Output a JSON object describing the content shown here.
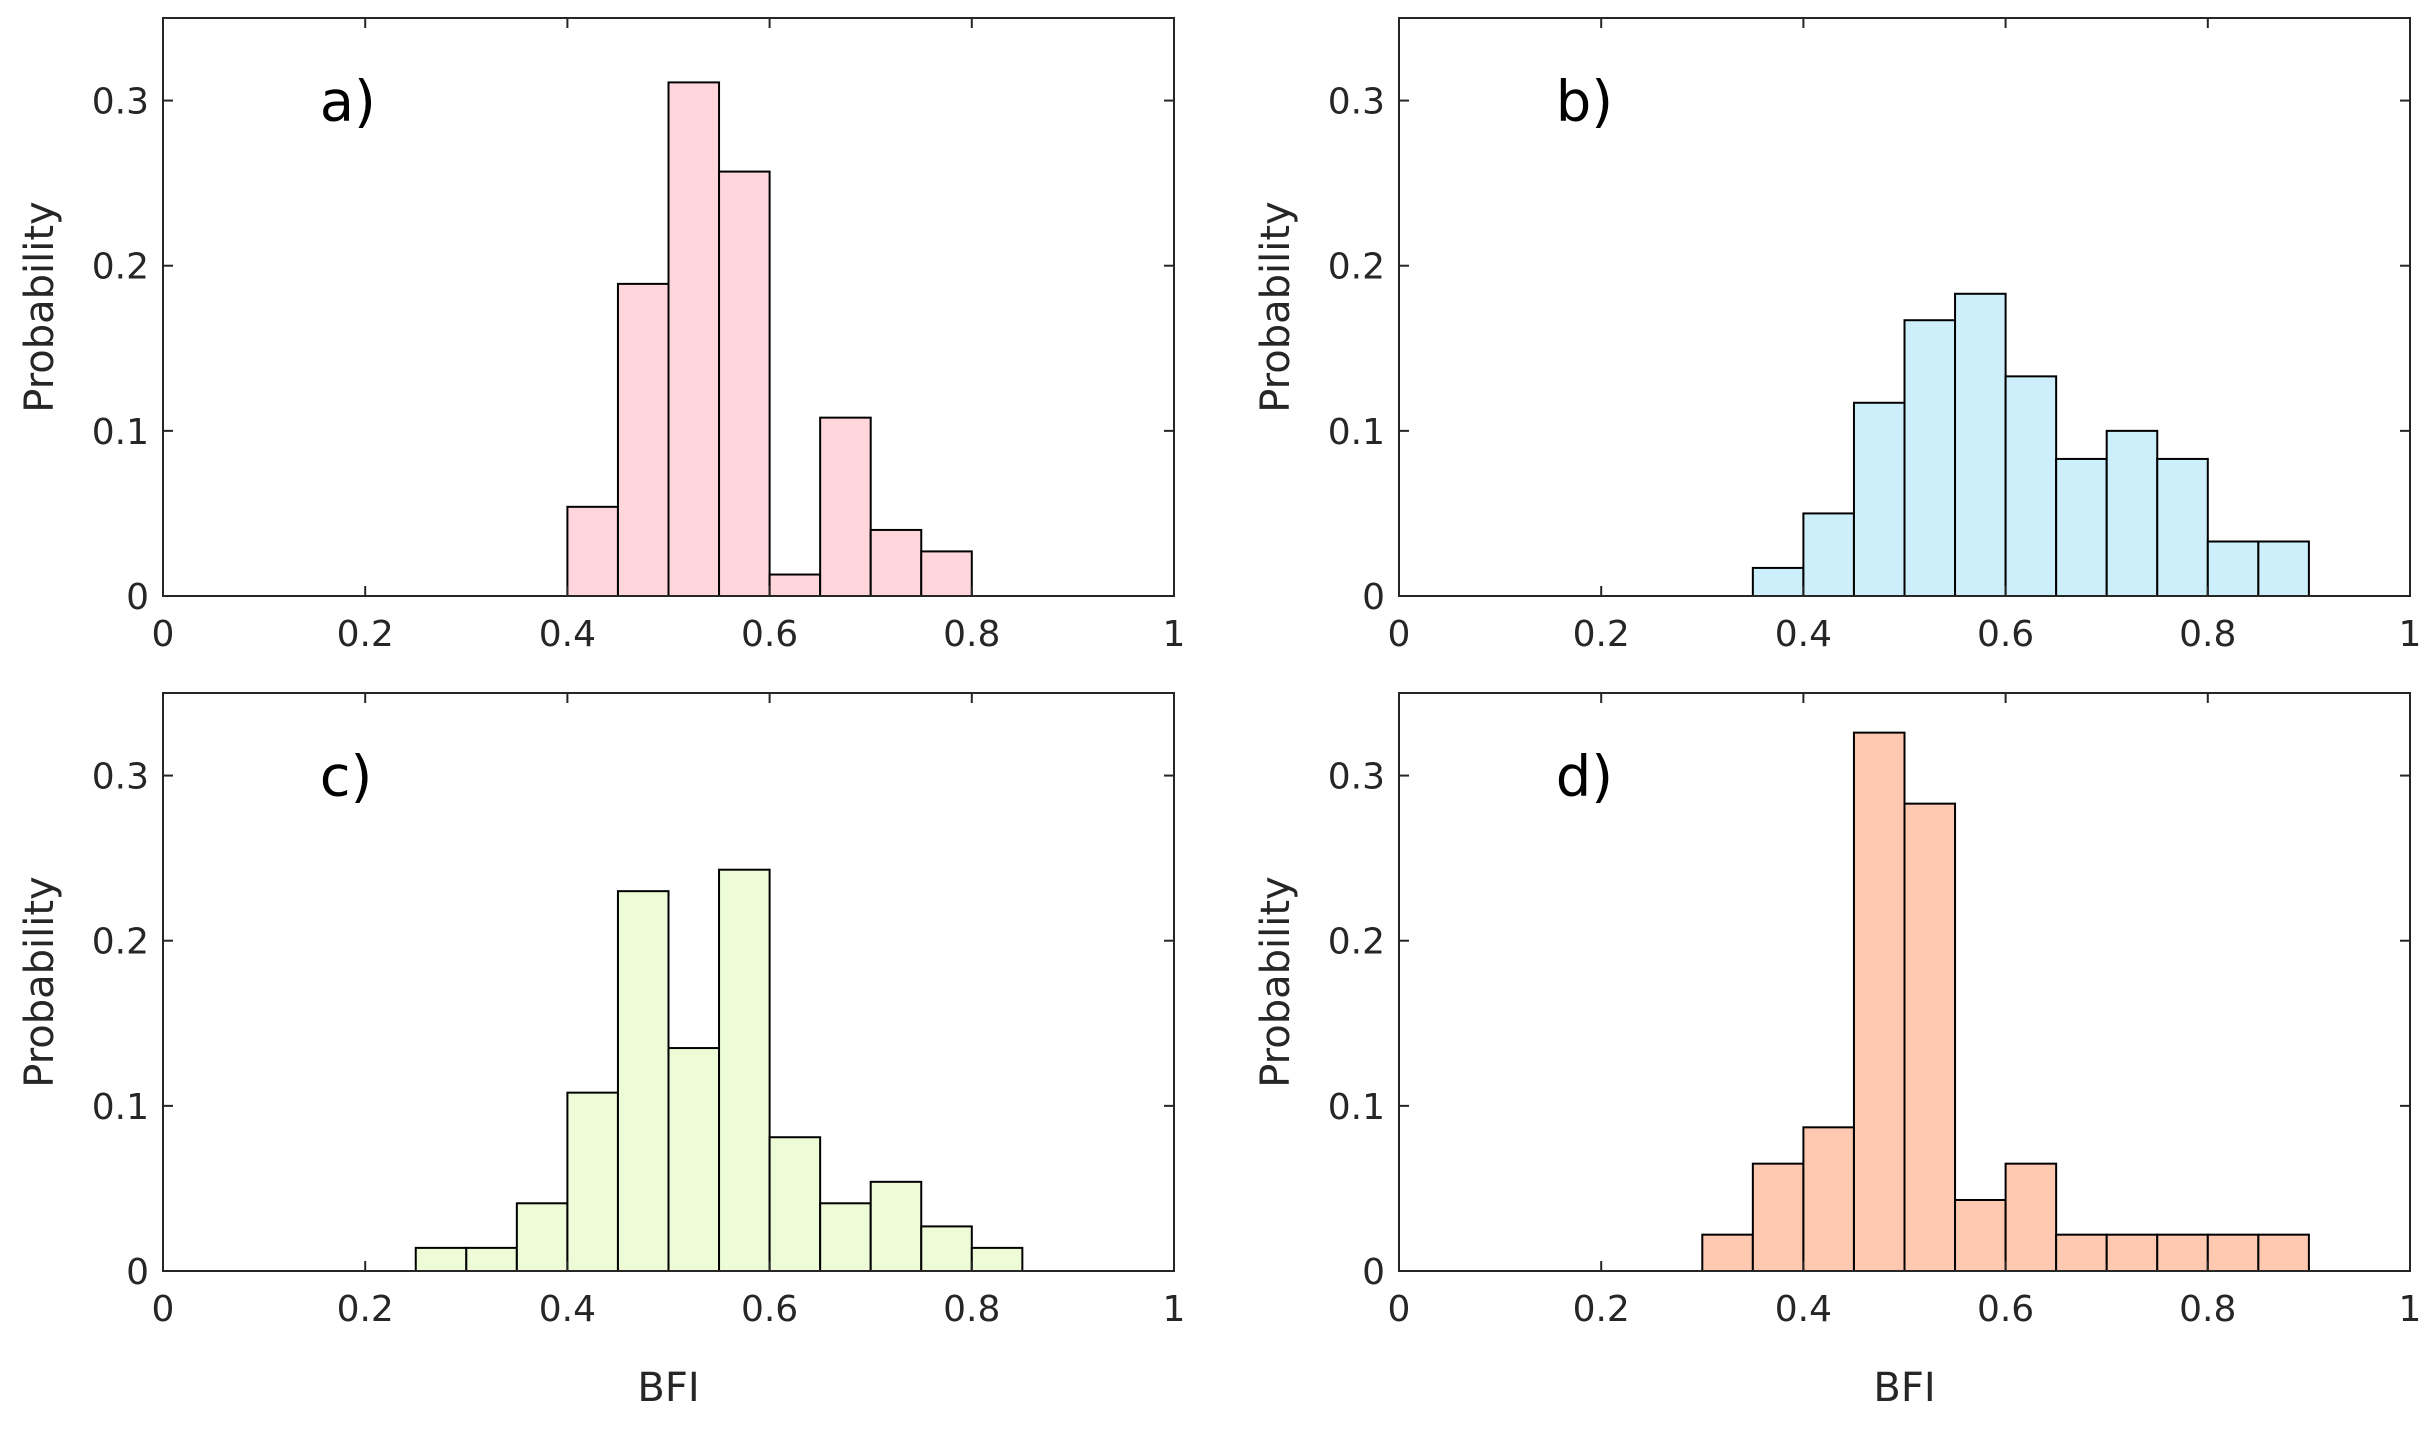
{
  "chart_data": [
    {
      "type": "bar",
      "panel_label": "a)",
      "xlabel": "",
      "ylabel": "Probability",
      "xlim": [
        0,
        1
      ],
      "ylim": [
        0,
        0.35
      ],
      "xticks": [
        0,
        0.2,
        0.4,
        0.6,
        0.8,
        1
      ],
      "xtick_labels": [
        "0",
        "0.2",
        "0.4",
        "0.6",
        "0.8",
        "1"
      ],
      "yticks": [
        0,
        0.1,
        0.2,
        0.3
      ],
      "ytick_labels": [
        "0",
        "0.1",
        "0.2",
        "0.3"
      ],
      "bin_width": 0.05,
      "bin_starts": [
        0.4,
        0.45,
        0.5,
        0.55,
        0.6,
        0.65,
        0.7,
        0.75
      ],
      "values": [
        0.054,
        0.189,
        0.311,
        0.257,
        0.013,
        0.108,
        0.04,
        0.027
      ],
      "color": "#ffd6dc"
    },
    {
      "type": "bar",
      "panel_label": "b)",
      "xlabel": "",
      "ylabel": "Probability",
      "xlim": [
        0,
        1
      ],
      "ylim": [
        0,
        0.35
      ],
      "xticks": [
        0,
        0.2,
        0.4,
        0.6,
        0.8,
        1
      ],
      "xtick_labels": [
        "0",
        "0.2",
        "0.4",
        "0.6",
        "0.8",
        "1"
      ],
      "yticks": [
        0,
        0.1,
        0.2,
        0.3
      ],
      "ytick_labels": [
        "0",
        "0.1",
        "0.2",
        "0.3"
      ],
      "bin_width": 0.05,
      "bin_starts": [
        0.35,
        0.4,
        0.45,
        0.5,
        0.55,
        0.6,
        0.65,
        0.7,
        0.75,
        0.8,
        0.85
      ],
      "values": [
        0.017,
        0.05,
        0.117,
        0.167,
        0.183,
        0.133,
        0.083,
        0.1,
        0.083,
        0.033,
        0.033
      ],
      "color": "#cdeefb"
    },
    {
      "type": "bar",
      "panel_label": "c)",
      "xlabel": "BFI",
      "ylabel": "Probability",
      "xlim": [
        0,
        1
      ],
      "ylim": [
        0,
        0.35
      ],
      "xticks": [
        0,
        0.2,
        0.4,
        0.6,
        0.8,
        1
      ],
      "xtick_labels": [
        "0",
        "0.2",
        "0.4",
        "0.6",
        "0.8",
        "1"
      ],
      "yticks": [
        0,
        0.1,
        0.2,
        0.3
      ],
      "ytick_labels": [
        "0",
        "0.1",
        "0.2",
        "0.3"
      ],
      "bin_width": 0.05,
      "bin_starts": [
        0.25,
        0.3,
        0.35,
        0.4,
        0.45,
        0.5,
        0.55,
        0.6,
        0.65,
        0.7,
        0.75,
        0.8
      ],
      "values": [
        0.014,
        0.014,
        0.041,
        0.108,
        0.23,
        0.135,
        0.243,
        0.081,
        0.041,
        0.054,
        0.027,
        0.014
      ],
      "color": "#edfcd6"
    },
    {
      "type": "bar",
      "panel_label": "d)",
      "xlabel": "BFI",
      "ylabel": "Probability",
      "xlim": [
        0,
        1
      ],
      "ylim": [
        0,
        0.35
      ],
      "xticks": [
        0,
        0.2,
        0.4,
        0.6,
        0.8,
        1
      ],
      "xtick_labels": [
        "0",
        "0.2",
        "0.4",
        "0.6",
        "0.8",
        "1"
      ],
      "yticks": [
        0,
        0.1,
        0.2,
        0.3
      ],
      "ytick_labels": [
        "0",
        "0.1",
        "0.2",
        "0.3"
      ],
      "bin_width": 0.05,
      "bin_starts": [
        0.3,
        0.35,
        0.4,
        0.45,
        0.5,
        0.55,
        0.6,
        0.65,
        0.7,
        0.75,
        0.8,
        0.85
      ],
      "values": [
        0.022,
        0.065,
        0.087,
        0.326,
        0.283,
        0.043,
        0.065,
        0.022,
        0.022,
        0.022,
        0.022,
        0.022
      ],
      "color": "#ffc8b0"
    }
  ]
}
